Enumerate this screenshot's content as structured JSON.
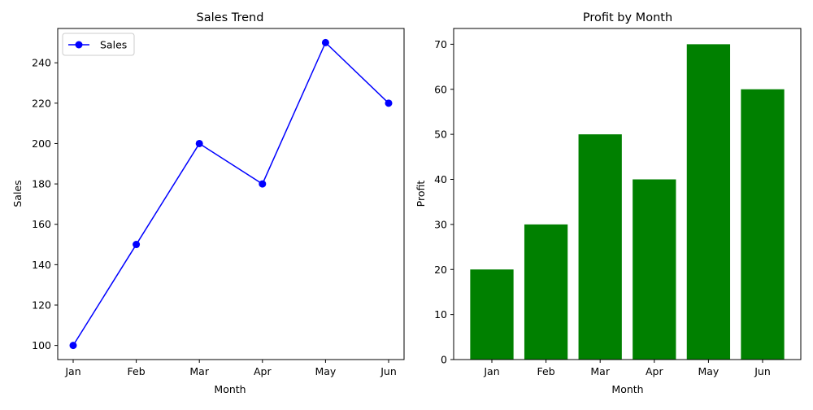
{
  "chart_data": [
    {
      "type": "line",
      "title": "Sales Trend",
      "xlabel": "Month",
      "ylabel": "Sales",
      "categories": [
        "Jan",
        "Feb",
        "Mar",
        "Apr",
        "May",
        "Jun"
      ],
      "series": [
        {
          "name": "Sales",
          "values": [
            100,
            150,
            200,
            180,
            250,
            220
          ],
          "color": "#0000ff",
          "marker": "circle"
        }
      ],
      "ylim": [
        93,
        257
      ],
      "yticks": [
        100,
        120,
        140,
        160,
        180,
        200,
        220,
        240
      ],
      "legend": {
        "position": "upper-left",
        "entries": [
          "Sales"
        ]
      },
      "grid": false
    },
    {
      "type": "bar",
      "title": "Profit by Month",
      "xlabel": "Month",
      "ylabel": "Profit",
      "categories": [
        "Jan",
        "Feb",
        "Mar",
        "Apr",
        "May",
        "Jun"
      ],
      "values": [
        20,
        30,
        50,
        40,
        70,
        60
      ],
      "color": "#008000",
      "ylim": [
        0,
        73.5
      ],
      "yticks": [
        0,
        10,
        20,
        30,
        40,
        50,
        60,
        70
      ],
      "grid": false
    }
  ]
}
